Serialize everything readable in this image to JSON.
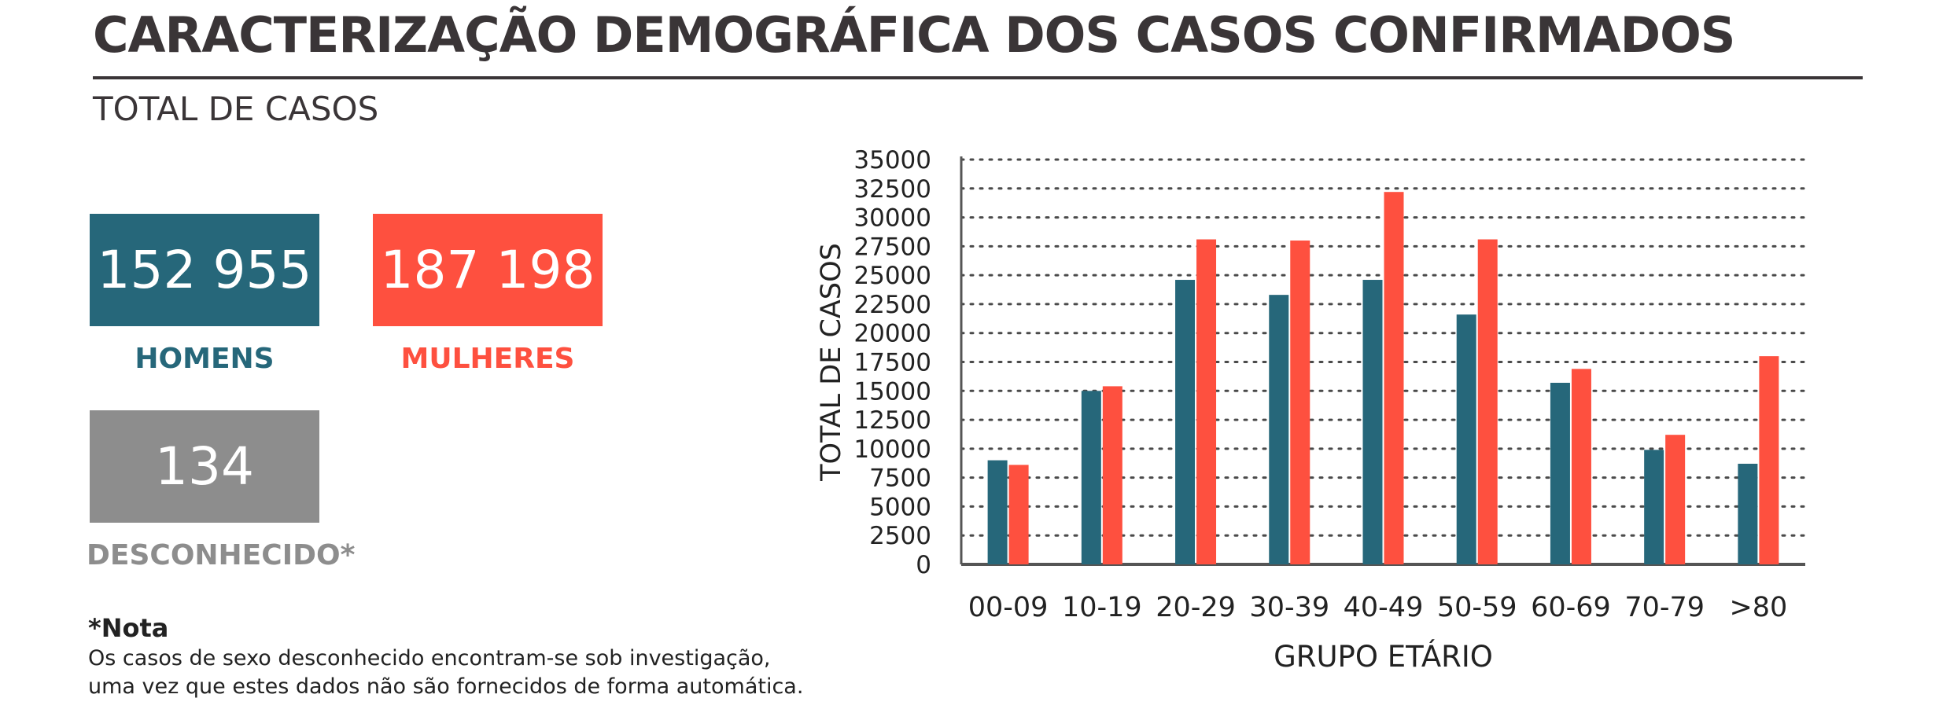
{
  "header": {
    "title": "CARACTERIZAÇÃO DEMOGRÁFICA DOS CASOS CONFIRMADOS",
    "subtitle": "TOTAL DE CASOS"
  },
  "totals": {
    "men_value": "152 955",
    "men_label": "HOMENS",
    "women_value": "187 198",
    "women_label": "MULHERES",
    "unknown_value": "134",
    "unknown_label": "DESCONHECIDO*"
  },
  "note": {
    "heading": "*Nota",
    "text_line1": "Os casos de sexo desconhecido encontram-se sob investigação,",
    "text_line2": "uma vez que estes dados não são fornecidos de forma automática."
  },
  "colors": {
    "men": "#26677a",
    "women": "#fe503f",
    "unknown": "#8d8d8d",
    "text": "#3a3537"
  },
  "chart_data": {
    "type": "bar",
    "categories": [
      "00-09",
      "10-19",
      "20-29",
      "30-39",
      "40-49",
      "50-59",
      "60-69",
      "70-79",
      ">80"
    ],
    "series": [
      {
        "values": [
          9000,
          15000,
          24600,
          23300,
          24600,
          21600,
          15700,
          9900,
          8700
        ]
      },
      {
        "values": [
          8600,
          15400,
          28100,
          28000,
          32200,
          28100,
          16900,
          11200,
          18000
        ]
      }
    ],
    "xlabel": "GRUPO ETÁRIO",
    "ylabel": "TOTAL DE CASOS",
    "ylim": [
      0,
      35000
    ],
    "yticks": [
      0,
      2500,
      5000,
      7500,
      10000,
      12500,
      15000,
      17500,
      20000,
      22500,
      25000,
      27500,
      30000,
      32500,
      35000
    ],
    "grid": "dotted horizontal",
    "legend": "none"
  }
}
